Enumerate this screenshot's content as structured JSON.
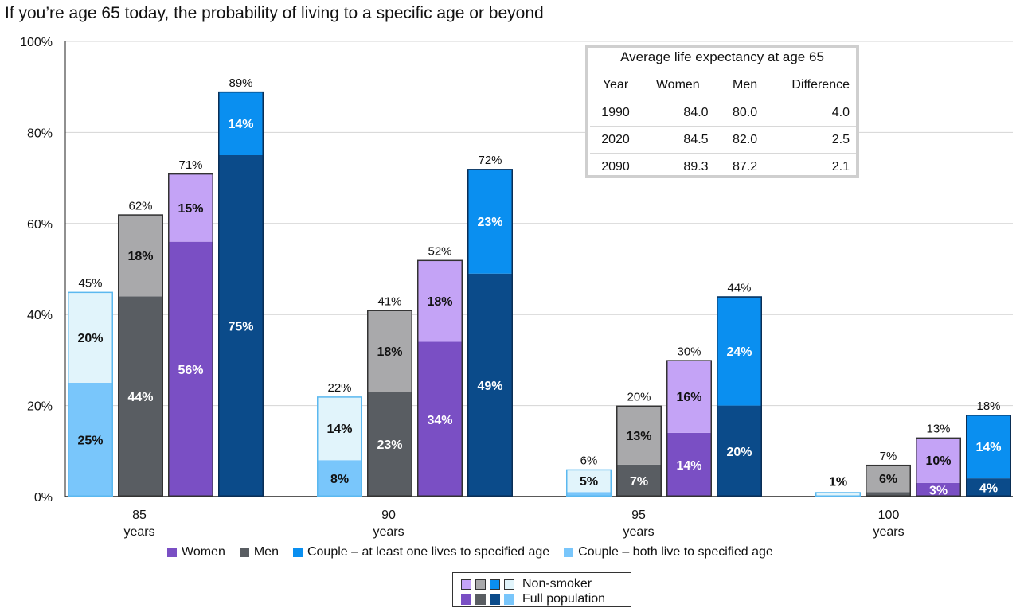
{
  "title": "If you’re age 65 today, the probability of living to a specific age or beyond",
  "colors": {
    "women_full": "#7a4fc4",
    "women_ns": "#c4a3f6",
    "men_full": "#595d62",
    "men_ns": "#a9a9ab",
    "couple_one_full": "#0b4b8a",
    "couple_one_ns": "#0a8ff0",
    "couple_both_full": "#79c6fb",
    "couple_both_ns": "#e1f4fb"
  },
  "chart_data": {
    "type": "bar",
    "stacked": true,
    "y_axis": {
      "min": 0,
      "max": 100,
      "ticks": [
        "0%",
        "20%",
        "40%",
        "60%",
        "80%",
        "100%"
      ]
    },
    "grid": true,
    "categories": [
      {
        "line1": "85",
        "line2": "years"
      },
      {
        "line1": "90",
        "line2": "years"
      },
      {
        "line1": "95",
        "line2": "years"
      },
      {
        "line1": "100",
        "line2": "years"
      }
    ],
    "series": [
      {
        "name": "Couple – both live to specified age",
        "key": "couple_both",
        "full": [
          25,
          8,
          1,
          0
        ],
        "nonsmoker": [
          20,
          14,
          5,
          1
        ],
        "total": [
          45,
          22,
          6,
          null
        ],
        "full_labels": [
          "25%",
          "8%",
          "",
          ""
        ],
        "ns_labels": [
          "20%",
          "14%",
          "5%",
          "1%"
        ],
        "total_labels": [
          "45%",
          "22%",
          "6%",
          ""
        ]
      },
      {
        "name": "Men",
        "key": "men",
        "full": [
          44,
          23,
          7,
          1
        ],
        "nonsmoker": [
          18,
          18,
          13,
          6
        ],
        "total": [
          62,
          41,
          20,
          7
        ],
        "full_labels": [
          "44%",
          "23%",
          "7%",
          ""
        ],
        "ns_labels": [
          "18%",
          "18%",
          "13%",
          "6%"
        ],
        "total_labels": [
          "62%",
          "41%",
          "20%",
          "7%"
        ]
      },
      {
        "name": "Women",
        "key": "women",
        "full": [
          56,
          34,
          14,
          3
        ],
        "nonsmoker": [
          15,
          18,
          16,
          10
        ],
        "total": [
          71,
          52,
          30,
          13
        ],
        "full_labels": [
          "56%",
          "34%",
          "14%",
          "3%"
        ],
        "ns_labels": [
          "15%",
          "18%",
          "16%",
          "10%"
        ],
        "total_labels": [
          "71%",
          "52%",
          "30%",
          "13%"
        ]
      },
      {
        "name": "Couple – at least one lives to specified age",
        "key": "couple_one",
        "full": [
          75,
          49,
          20,
          4
        ],
        "nonsmoker": [
          14,
          23,
          24,
          14
        ],
        "total": [
          89,
          72,
          44,
          18
        ],
        "full_labels": [
          "75%",
          "49%",
          "20%",
          "4%"
        ],
        "ns_labels": [
          "14%",
          "23%",
          "24%",
          "14%"
        ],
        "total_labels": [
          "89%",
          "72%",
          "44%",
          "18%"
        ]
      }
    ]
  },
  "inset": {
    "title": "Average life expectancy at age 65",
    "headers": [
      "Year",
      "Women",
      "Men",
      "Difference"
    ],
    "rows": [
      [
        "1990",
        "84.0",
        "80.0",
        "4.0"
      ],
      [
        "2020",
        "84.5",
        "82.0",
        "2.5"
      ],
      [
        "2090",
        "89.3",
        "87.2",
        "2.1"
      ]
    ]
  },
  "legend": [
    {
      "label": "Women",
      "color": "#7a4fc4"
    },
    {
      "label": "Men",
      "color": "#595d62"
    },
    {
      "label": "Couple – at least one lives to specified age",
      "color": "#0a8ff0"
    },
    {
      "label": "Couple – both live to specified age",
      "color": "#79c6fb"
    }
  ],
  "key": {
    "nonsmoker_label": "Non-smoker",
    "full_label": "Full population"
  }
}
